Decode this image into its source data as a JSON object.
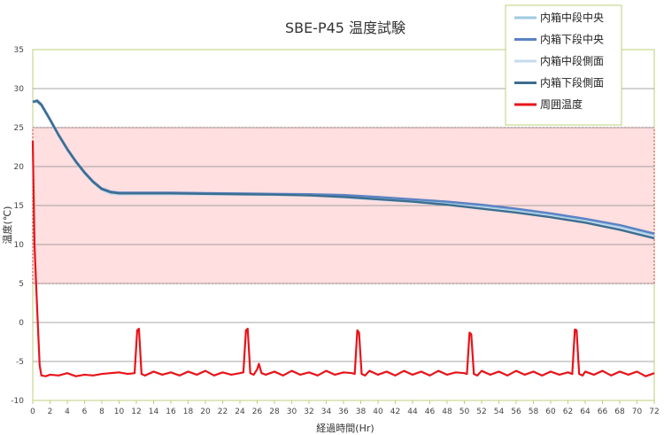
{
  "chart_data": {
    "type": "line",
    "title": "SBE-P45 温度試験",
    "xlabel": "経過時間(Hr)",
    "ylabel": "温度(℃)",
    "xlim": [
      0,
      72
    ],
    "ylim": [
      -10,
      35
    ],
    "x_ticks": [
      0,
      2,
      4,
      6,
      8,
      10,
      12,
      14,
      16,
      18,
      20,
      22,
      24,
      26,
      28,
      30,
      32,
      34,
      36,
      38,
      40,
      42,
      44,
      46,
      48,
      50,
      52,
      54,
      56,
      58,
      60,
      62,
      64,
      66,
      68,
      70,
      72
    ],
    "y_ticks": [
      -10,
      -5,
      0,
      5,
      10,
      15,
      20,
      25,
      30,
      35
    ],
    "grid": "horizontal",
    "legend_position": "top-right",
    "band": {
      "y_min": 5,
      "y_max": 25,
      "fill": "#ffdfe0",
      "border": "#d03a3a"
    },
    "series": [
      {
        "name": "内箱中段中央",
        "color": "#9ecae1",
        "x": [
          0,
          0.5,
          1,
          2,
          3,
          4,
          5,
          6,
          7,
          8,
          9,
          10,
          12,
          16,
          20,
          24,
          28,
          32,
          36,
          40,
          44,
          48,
          52,
          56,
          60,
          64,
          68,
          72
        ],
        "y": [
          28.3,
          28.4,
          27.9,
          26.0,
          24.0,
          22.2,
          20.6,
          19.2,
          18.0,
          17.1,
          16.6,
          16.5,
          16.55,
          16.55,
          16.5,
          16.5,
          16.45,
          16.4,
          16.2,
          15.9,
          15.6,
          15.3,
          14.9,
          14.4,
          13.8,
          13.1,
          12.3,
          11.2
        ]
      },
      {
        "name": "内箱下段中央",
        "color": "#5b82c4",
        "x": [
          0,
          0.5,
          1,
          2,
          3,
          4,
          5,
          6,
          7,
          8,
          9,
          10,
          12,
          16,
          20,
          24,
          28,
          32,
          36,
          40,
          44,
          48,
          52,
          56,
          60,
          64,
          68,
          72
        ],
        "y": [
          28.3,
          28.5,
          28.0,
          26.1,
          24.1,
          22.3,
          20.7,
          19.3,
          18.1,
          17.2,
          16.8,
          16.65,
          16.65,
          16.65,
          16.6,
          16.55,
          16.5,
          16.45,
          16.35,
          16.1,
          15.8,
          15.5,
          15.1,
          14.6,
          14.0,
          13.3,
          12.5,
          11.4
        ]
      },
      {
        "name": "内箱中段側面",
        "color": "#c6dbef",
        "x": [
          0,
          0.5,
          1,
          2,
          3,
          4,
          5,
          6,
          7,
          8,
          9,
          10,
          12,
          16,
          20,
          24,
          28,
          32,
          36,
          40,
          44,
          48,
          52,
          56,
          60,
          64,
          68,
          72
        ],
        "y": [
          28.2,
          28.3,
          27.8,
          25.9,
          23.9,
          22.1,
          20.5,
          19.1,
          17.9,
          17.0,
          16.5,
          16.4,
          16.45,
          16.45,
          16.4,
          16.4,
          16.35,
          16.3,
          16.05,
          15.75,
          15.45,
          15.1,
          14.7,
          14.2,
          13.6,
          12.9,
          12.1,
          11.0
        ]
      },
      {
        "name": "内箱下段側面",
        "color": "#3d6e8f",
        "x": [
          0,
          0.5,
          1,
          2,
          3,
          4,
          5,
          6,
          7,
          8,
          9,
          10,
          12,
          16,
          20,
          24,
          28,
          32,
          36,
          40,
          44,
          48,
          52,
          56,
          60,
          64,
          68,
          72
        ],
        "y": [
          28.3,
          28.4,
          27.9,
          26.0,
          24.0,
          22.2,
          20.6,
          19.2,
          18.0,
          17.1,
          16.7,
          16.55,
          16.55,
          16.55,
          16.5,
          16.45,
          16.4,
          16.3,
          16.1,
          15.8,
          15.5,
          15.1,
          14.6,
          14.1,
          13.5,
          12.8,
          11.9,
          10.8
        ]
      },
      {
        "name": "周囲温度",
        "color": "#e8141a",
        "x": [
          0,
          0.2,
          0.5,
          0.8,
          1.0,
          1.5,
          2.0,
          3,
          4,
          5,
          6,
          7,
          8,
          9,
          10,
          11,
          11.8,
          12.1,
          12.3,
          12.6,
          13,
          14,
          15,
          16,
          17,
          18,
          19,
          20,
          21,
          22,
          23,
          24,
          24.4,
          24.7,
          24.9,
          25.2,
          25.6,
          26.0,
          26.2,
          26.5,
          27,
          28,
          29,
          30,
          31,
          32,
          33,
          34,
          35,
          36,
          37,
          37.3,
          37.6,
          37.8,
          38.1,
          38.5,
          39,
          40,
          41,
          42,
          43,
          44,
          45,
          46,
          47,
          48,
          49,
          50,
          50.3,
          50.6,
          50.8,
          51.1,
          51.5,
          52,
          53,
          54,
          55,
          56,
          57,
          58,
          59,
          60,
          61,
          62,
          62.5,
          62.8,
          63.0,
          63.3,
          63.7,
          64,
          65,
          66,
          67,
          68,
          69,
          70,
          71,
          72
        ],
        "y": [
          23.3,
          10.0,
          2.0,
          -5.5,
          -6.8,
          -6.9,
          -6.7,
          -6.8,
          -6.5,
          -6.9,
          -6.7,
          -6.8,
          -6.6,
          -6.5,
          -6.4,
          -6.6,
          -6.5,
          -1.0,
          -0.8,
          -6.6,
          -6.8,
          -6.3,
          -6.7,
          -6.4,
          -6.8,
          -6.3,
          -6.7,
          -6.2,
          -6.8,
          -6.4,
          -6.7,
          -6.5,
          -6.4,
          -1.0,
          -0.8,
          -6.5,
          -6.7,
          -6.0,
          -5.3,
          -6.5,
          -6.7,
          -6.3,
          -6.8,
          -6.2,
          -6.7,
          -6.4,
          -6.8,
          -6.2,
          -6.7,
          -6.4,
          -6.5,
          -6.6,
          -1.0,
          -1.3,
          -6.6,
          -6.8,
          -6.2,
          -6.7,
          -6.3,
          -6.8,
          -6.2,
          -6.7,
          -6.3,
          -6.8,
          -6.2,
          -6.7,
          -6.4,
          -6.5,
          -6.6,
          -1.3,
          -1.5,
          -6.6,
          -6.8,
          -6.2,
          -6.7,
          -6.3,
          -6.8,
          -6.2,
          -6.7,
          -6.3,
          -6.8,
          -6.3,
          -6.7,
          -6.4,
          -6.6,
          -0.9,
          -1.0,
          -6.6,
          -6.8,
          -6.3,
          -6.7,
          -6.2,
          -6.8,
          -6.3,
          -6.7,
          -6.3,
          -6.9,
          -6.5
        ]
      }
    ]
  }
}
